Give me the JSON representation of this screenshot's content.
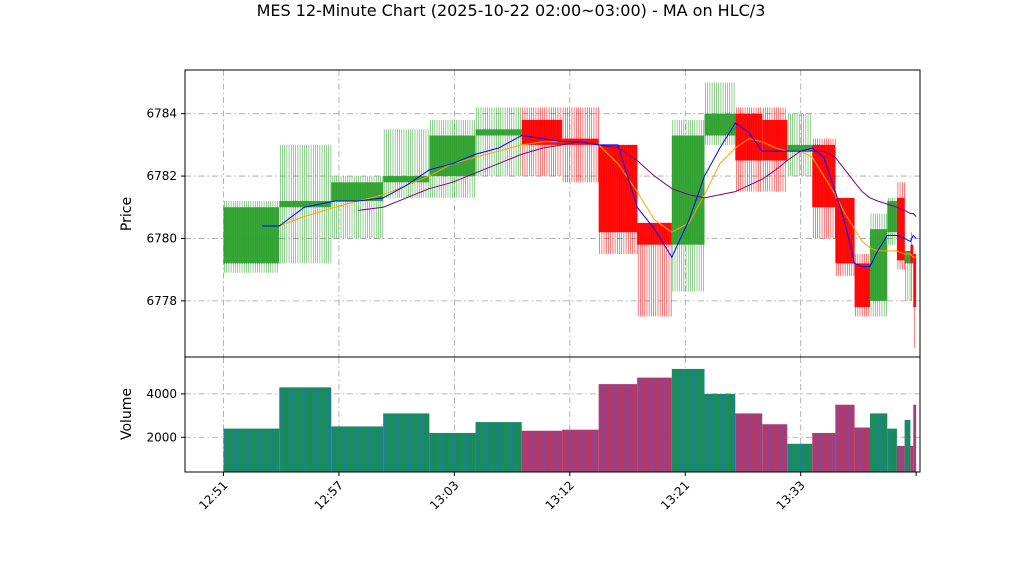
{
  "colors": {
    "up": "#2ca02c",
    "down": "#ff0000",
    "ma_fast": "#0000ff",
    "ma_mid": "#ffa500",
    "ma_slow": "#800080",
    "grid": "#a0a0a0"
  },
  "chart_data": {
    "type": "candlestick",
    "title": "MES 12-Minute Chart (2025-10-22 02:00~03:00) - MA on HLC/3",
    "price_label": "Price",
    "volume_label": "Volume",
    "price_ylim": [
      6776.2,
      6785.4
    ],
    "price_ticks": [
      "6778",
      "6780",
      "6782",
      "6784"
    ],
    "volume_ylim": [
      400,
      5700
    ],
    "volume_ticks": [
      "2000",
      "4000"
    ],
    "x_range": [
      0,
      38.2
    ],
    "x_ticks": [
      {
        "x": 2,
        "label": "12:51"
      },
      {
        "x": 8,
        "label": "12:57"
      },
      {
        "x": 14,
        "label": "13:03"
      },
      {
        "x": 20,
        "label": "13:12"
      },
      {
        "x": 26,
        "label": "13:21"
      },
      {
        "x": 32,
        "label": "13:33"
      },
      {
        "x": 38,
        "label": ""
      }
    ],
    "grid": true,
    "candles": [
      {
        "x0": 2.0,
        "x1": 4.9,
        "open": 6779.2,
        "high": 6781.2,
        "low": 6778.9,
        "close": 6781.0
      },
      {
        "x0": 4.9,
        "x1": 7.6,
        "open": 6781.0,
        "high": 6783.0,
        "low": 6779.2,
        "close": 6781.2
      },
      {
        "x0": 7.6,
        "x1": 10.3,
        "open": 6781.2,
        "high": 6782.0,
        "low": 6780.0,
        "close": 6781.8
      },
      {
        "x0": 10.3,
        "x1": 12.7,
        "open": 6781.8,
        "high": 6783.5,
        "low": 6781.3,
        "close": 6782.0
      },
      {
        "x0": 12.7,
        "x1": 15.1,
        "open": 6782.0,
        "high": 6783.8,
        "low": 6781.3,
        "close": 6783.3
      },
      {
        "x0": 15.1,
        "x1": 17.5,
        "open": 6783.3,
        "high": 6784.2,
        "low": 6782.0,
        "close": 6783.5
      },
      {
        "x0": 17.5,
        "x1": 19.6,
        "open": 6783.8,
        "high": 6784.2,
        "low": 6782.0,
        "close": 6783.0
      },
      {
        "x0": 19.6,
        "x1": 21.5,
        "open": 6783.2,
        "high": 6784.2,
        "low": 6781.8,
        "close": 6783.0
      },
      {
        "x0": 21.5,
        "x1": 23.5,
        "open": 6783.0,
        "high": 6783.0,
        "low": 6779.5,
        "close": 6780.2
      },
      {
        "x0": 23.5,
        "x1": 25.3,
        "open": 6780.5,
        "high": 6780.5,
        "low": 6777.5,
        "close": 6779.8
      },
      {
        "x0": 25.3,
        "x1": 27.0,
        "open": 6779.8,
        "high": 6783.8,
        "low": 6778.3,
        "close": 6783.3
      },
      {
        "x0": 27.0,
        "x1": 28.6,
        "open": 6783.3,
        "high": 6785.0,
        "low": 6783.0,
        "close": 6784.0
      },
      {
        "x0": 28.6,
        "x1": 30.0,
        "open": 6784.0,
        "high": 6784.2,
        "low": 6781.5,
        "close": 6782.5
      },
      {
        "x0": 30.0,
        "x1": 31.3,
        "open": 6783.8,
        "high": 6784.2,
        "low": 6781.5,
        "close": 6782.5
      },
      {
        "x0": 31.3,
        "x1": 32.6,
        "open": 6782.8,
        "high": 6784.0,
        "low": 6782.0,
        "close": 6783.0
      },
      {
        "x0": 32.6,
        "x1": 33.8,
        "open": 6783.0,
        "high": 6783.2,
        "low": 6780.0,
        "close": 6781.0
      },
      {
        "x0": 33.8,
        "x1": 34.8,
        "open": 6781.3,
        "high": 6781.3,
        "low": 6778.8,
        "close": 6779.2
      },
      {
        "x0": 34.8,
        "x1": 35.6,
        "open": 6779.2,
        "high": 6779.5,
        "low": 6777.5,
        "close": 6777.8
      },
      {
        "x0": 35.6,
        "x1": 36.5,
        "open": 6778.0,
        "high": 6780.8,
        "low": 6777.5,
        "close": 6780.3
      },
      {
        "x0": 36.5,
        "x1": 37.0,
        "open": 6780.2,
        "high": 6781.3,
        "low": 6779.8,
        "close": 6781.2
      },
      {
        "x0": 37.0,
        "x1": 37.4,
        "open": 6781.3,
        "high": 6781.8,
        "low": 6779.0,
        "close": 6779.3
      },
      {
        "x0": 37.4,
        "x1": 37.7,
        "open": 6779.2,
        "high": 6779.6,
        "low": 6778.0,
        "close": 6779.6
      },
      {
        "x0": 37.7,
        "x1": 37.85,
        "open": 6779.8,
        "high": 6780.2,
        "low": 6778.0,
        "close": 6779.2
      },
      {
        "x0": 37.85,
        "x1": 38.0,
        "open": 6779.5,
        "high": 6779.5,
        "low": 6776.5,
        "close": 6777.8
      }
    ],
    "volume": [
      2400,
      4300,
      2500,
      3100,
      2200,
      2700,
      2300,
      2350,
      4450,
      4750,
      5150,
      4000,
      3100,
      2600,
      1700,
      2200,
      3500,
      2450,
      3100,
      2400,
      1600,
      2800,
      1600,
      3500
    ],
    "ma_fast": {
      "x": [
        4.0,
        4.9,
        6.2,
        7.8,
        9.0,
        10.3,
        11.5,
        12.7,
        13.9,
        15.1,
        16.3,
        17.5,
        18.6,
        19.6,
        20.5,
        21.5,
        22.5,
        23.5,
        24.4,
        25.3,
        26.2,
        27.0,
        27.8,
        28.6,
        29.3,
        30.0,
        30.7,
        31.3,
        32.0,
        32.6,
        33.2,
        33.8,
        34.3,
        34.8,
        35.2,
        35.6,
        36.0,
        36.5,
        37.0,
        37.4,
        37.7,
        37.85,
        38.0
      ],
      "y": [
        6780.4,
        6780.4,
        6781.0,
        6781.2,
        6781.2,
        6781.3,
        6781.7,
        6782.2,
        6782.4,
        6782.7,
        6782.9,
        6783.3,
        6783.2,
        6783.1,
        6783.1,
        6783.0,
        6783.0,
        6781.0,
        6780.3,
        6779.4,
        6780.6,
        6782.0,
        6782.9,
        6783.7,
        6783.4,
        6782.8,
        6782.8,
        6782.8,
        6782.8,
        6782.9,
        6782.6,
        6781.5,
        6780.5,
        6779.2,
        6779.1,
        6779.1,
        6779.6,
        6780.1,
        6780.1,
        6780.0,
        6779.9,
        6780.1,
        6780.0
      ]
    },
    "ma_mid": {
      "x": [
        4.9,
        6.2,
        7.8,
        9.0,
        10.3,
        11.5,
        12.7,
        13.9,
        15.1,
        16.3,
        17.5,
        18.6,
        19.6,
        20.5,
        21.5,
        22.5,
        23.5,
        24.4,
        25.3,
        26.2,
        27.0,
        27.8,
        28.6,
        29.3,
        30.0,
        30.7,
        31.3,
        32.0,
        32.6,
        33.2,
        33.8,
        34.3,
        34.8,
        35.2,
        35.6,
        36.0,
        36.5,
        37.0,
        37.4,
        37.7,
        37.85,
        38.0
      ],
      "y": [
        6780.4,
        6780.7,
        6781.0,
        6781.2,
        6781.4,
        6781.7,
        6782.0,
        6782.4,
        6782.6,
        6782.8,
        6783.0,
        6783.1,
        6783.1,
        6783.1,
        6783.0,
        6782.4,
        6781.5,
        6780.6,
        6780.2,
        6780.5,
        6781.4,
        6782.4,
        6782.9,
        6783.2,
        6783.1,
        6782.9,
        6782.8,
        6782.8,
        6782.6,
        6782.0,
        6781.4,
        6780.8,
        6780.3,
        6779.9,
        6779.7,
        6779.6,
        6779.6,
        6779.6,
        6779.5,
        6779.5,
        6779.4,
        6779.4
      ]
    },
    "ma_slow": {
      "x": [
        9.0,
        10.3,
        11.5,
        12.7,
        13.9,
        15.1,
        16.3,
        17.5,
        18.6,
        19.6,
        20.5,
        21.5,
        22.5,
        23.5,
        24.4,
        25.3,
        26.2,
        27.0,
        27.8,
        28.6,
        29.3,
        30.0,
        30.7,
        31.3,
        32.0,
        32.6,
        33.2,
        33.8,
        34.3,
        34.8,
        35.2,
        35.6,
        36.0,
        36.5,
        37.0,
        37.4,
        37.7,
        37.85,
        38.0
      ],
      "y": [
        6780.9,
        6781.0,
        6781.3,
        6781.6,
        6781.8,
        6782.1,
        6782.4,
        6782.7,
        6782.9,
        6783.0,
        6783.1,
        6783.0,
        6782.9,
        6782.5,
        6782.0,
        6781.6,
        6781.4,
        6781.3,
        6781.4,
        6781.5,
        6781.7,
        6781.9,
        6782.2,
        6782.5,
        6782.8,
        6782.8,
        6782.8,
        6782.6,
        6782.2,
        6781.8,
        6781.5,
        6781.3,
        6781.2,
        6781.1,
        6781.0,
        6780.9,
        6780.8,
        6780.8,
        6780.7
      ]
    }
  }
}
